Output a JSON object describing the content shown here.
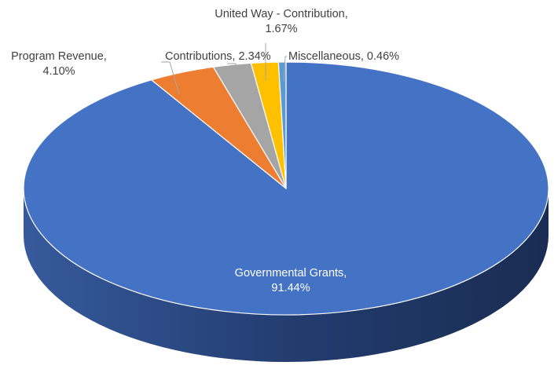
{
  "chart_data": {
    "type": "pie",
    "title": "",
    "slices": [
      {
        "name": "Governmental Grants",
        "value": 91.44,
        "label": [
          "Governmental Grants,",
          "91.44%"
        ],
        "color": "#4472C4"
      },
      {
        "name": "Program Revenue",
        "value": 4.1,
        "label": [
          "Program Revenue,",
          "4.10%"
        ],
        "color": "#ED7D31"
      },
      {
        "name": "Contributions",
        "value": 2.34,
        "label": [
          "Contributions, 2.34%"
        ],
        "color": "#A5A5A5"
      },
      {
        "name": "United Way - Contribution",
        "value": 1.67,
        "label": [
          "United Way - Contribution,",
          "1.67%"
        ],
        "color": "#FFC000"
      },
      {
        "name": "Miscellaneous",
        "value": 0.46,
        "label": [
          "Miscellaneous, 0.46%"
        ],
        "color": "#5B9BD5"
      }
    ],
    "legend": "none",
    "style": "3d-tilted"
  }
}
